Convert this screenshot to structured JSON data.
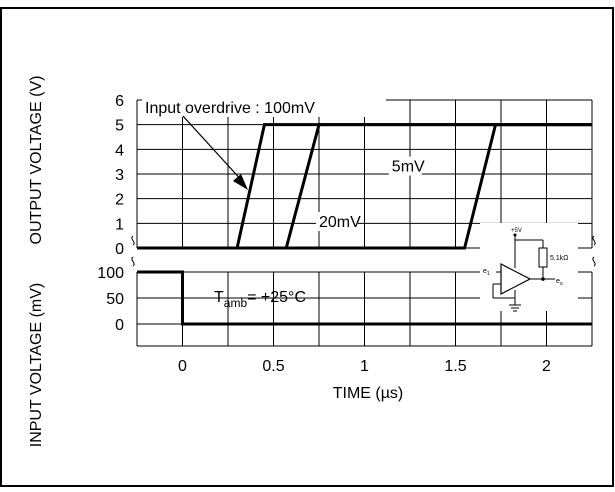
{
  "chart_data": {
    "type": "line",
    "title": "",
    "xlabel": "TIME (µs)",
    "xlim": [
      -0.25,
      2.25
    ],
    "x_ticks": [
      "0",
      "0.5",
      "1",
      "1.5",
      "2"
    ],
    "upper_panel": {
      "ylabel": "OUTPUT VOLTAGE (V)",
      "ylim": [
        0,
        6
      ],
      "y_ticks": [
        "0",
        "1",
        "2",
        "3",
        "4",
        "5",
        "6"
      ],
      "legend_label": "Input overdrive : 100mV",
      "series": [
        {
          "name": "100mV",
          "points": [
            [
              -0.25,
              0
            ],
            [
              0.3,
              0
            ],
            [
              0.45,
              5
            ],
            [
              2.25,
              5
            ]
          ]
        },
        {
          "name": "20mV",
          "points": [
            [
              -0.25,
              0
            ],
            [
              0.57,
              0
            ],
            [
              0.75,
              5
            ],
            [
              2.25,
              5
            ]
          ]
        },
        {
          "name": "5mV",
          "points": [
            [
              -0.25,
              0
            ],
            [
              1.55,
              0
            ],
            [
              1.72,
              5
            ],
            [
              2.25,
              5
            ]
          ]
        }
      ],
      "annotations": [
        {
          "text": "20mV",
          "x": 0.75,
          "y": 0.85
        },
        {
          "text": "5mV",
          "x": 1.15,
          "y": 3.1
        }
      ]
    },
    "lower_panel": {
      "ylabel": "INPUT VOLTAGE (mV)",
      "ylim": [
        0,
        100
      ],
      "y_ticks": [
        "0",
        "50",
        "100"
      ],
      "series": [
        {
          "name": "input step",
          "points": [
            [
              -0.25,
              100
            ],
            [
              0,
              100
            ],
            [
              0,
              0
            ],
            [
              2.25,
              0
            ]
          ]
        }
      ],
      "annotation": {
        "main": "T",
        "sub": "amb",
        "rest": "= +25°C"
      }
    },
    "grid": true,
    "inset_circuit": {
      "supply_label": "+5V",
      "resistor_label": "5.1kΩ",
      "input_label": "e",
      "input_sub": "1",
      "output_label": "e",
      "output_sub": "o"
    }
  }
}
